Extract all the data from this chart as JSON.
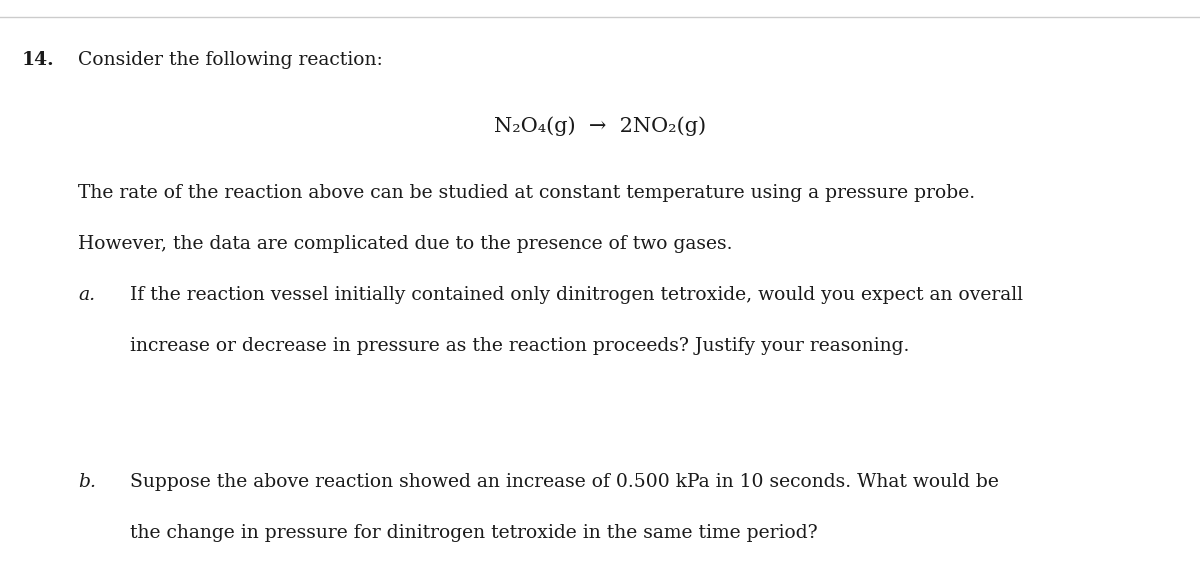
{
  "bg_color": "#ffffff",
  "border_color": "#cccccc",
  "question_number": "14.",
  "question_intro": "Consider the following reaction:",
  "reaction_line": "N₂O₄(g)  →  2NO₂(g)",
  "body_text_1": "The rate of the reaction above can be studied at constant temperature using a pressure probe.",
  "body_text_2": "However, the data are complicated due to the presence of two gases.",
  "part_a_label": "a.",
  "part_a_text_1": "If the reaction vessel initially contained only dinitrogen tetroxide, would you expect an overall",
  "part_a_text_2": "increase or decrease in pressure as the reaction proceeds? Justify your reasoning.",
  "part_b_label": "b.",
  "part_b_text_1": "Suppose the above reaction showed an increase of 0.500 kPa in 10 seconds. What would be",
  "part_b_text_2": "the change in pressure for dinitrogen tetroxide in the same time period?",
  "font_family": "serif",
  "font_size_main": 13.5,
  "font_size_reaction": 15,
  "text_color": "#1a1a1a"
}
